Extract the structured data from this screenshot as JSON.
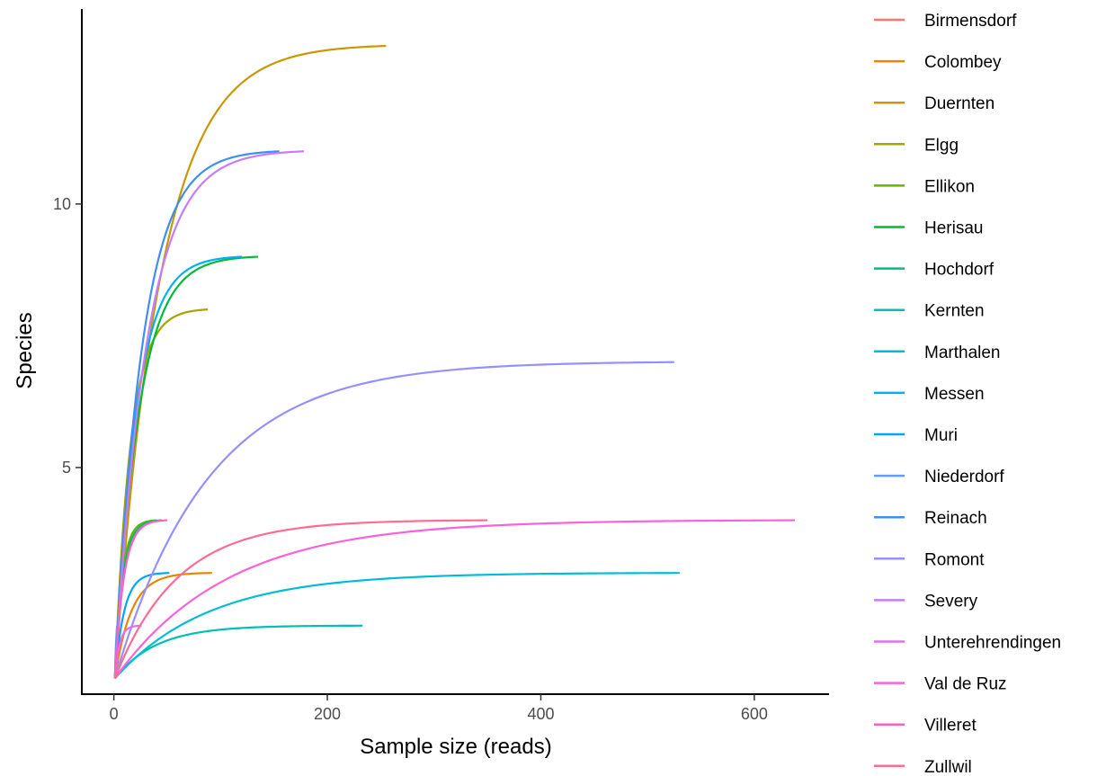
{
  "chart_data": {
    "type": "line",
    "title": "",
    "xlabel": "Sample size (reads)",
    "ylabel": "Species",
    "xlim": [
      -30,
      670
    ],
    "ylim": [
      0.7,
      13.7
    ],
    "x_ticks": [
      0,
      200,
      400,
      600
    ],
    "y_ticks": [
      5,
      10
    ],
    "grid": false,
    "legend_position": "right",
    "series": [
      {
        "name": "Birmensdorf",
        "color": "#F8766D",
        "n": 4,
        "s": 2
      },
      {
        "name": "Colombey",
        "color": "#E58700",
        "n": 92,
        "s": 3
      },
      {
        "name": "Duernten",
        "color": "#C99800",
        "n": 255,
        "s": 13
      },
      {
        "name": "Elgg",
        "color": "#A3A500",
        "n": 88,
        "s": 8
      },
      {
        "name": "Ellikon",
        "color": "#6BB100",
        "n": 40,
        "s": 4
      },
      {
        "name": "Herisau",
        "color": "#00BA38",
        "n": 135,
        "s": 9
      },
      {
        "name": "Hochdorf",
        "color": "#00BF7D",
        "n": 45,
        "s": 4
      },
      {
        "name": "Kernten",
        "color": "#00C0AF",
        "n": 233,
        "s": 2
      },
      {
        "name": "Marthalen",
        "color": "#00BCD8",
        "n": 530,
        "s": 3
      },
      {
        "name": "Messen",
        "color": "#00B0F6",
        "n": 120,
        "s": 9
      },
      {
        "name": "Muri",
        "color": "#00A5FF",
        "n": 52,
        "s": 3
      },
      {
        "name": "Niederdorf",
        "color": "#619CFF",
        "n": 3,
        "s": 2
      },
      {
        "name": "Reinach",
        "color": "#3F8EF0",
        "n": 155,
        "s": 11
      },
      {
        "name": "Romont",
        "color": "#9590FF",
        "n": 525,
        "s": 7
      },
      {
        "name": "Severy",
        "color": "#C77CFF",
        "n": 178,
        "s": 11
      },
      {
        "name": "Unterehrendingen",
        "color": "#E76BF3",
        "n": 26,
        "s": 2
      },
      {
        "name": "Val de Ruz",
        "color": "#FA62DB",
        "n": 638,
        "s": 4
      },
      {
        "name": "Villeret",
        "color": "#FF62BC",
        "n": 50,
        "s": 4
      },
      {
        "name": "Zullwil",
        "color": "#FF6C91",
        "n": 350,
        "s": 4
      }
    ]
  }
}
